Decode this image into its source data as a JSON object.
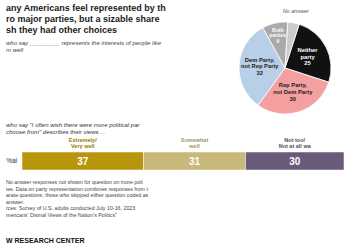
{
  "chart_data": [
    {
      "type": "pie",
      "title": "any Americans feel represented by th\nro major parties, but a sizable share\nsh they had other choices",
      "subtitle": "who say _________ represents the interests of people like\nm well",
      "categories": [
        "Neither\nparty",
        "Rep Party,\nnot Dem Party",
        "Dem Party,\nnot Rep Party",
        "Both\nparties",
        "No answer"
      ],
      "values": [
        25,
        30,
        32,
        9,
        4
      ],
      "value_labels": [
        "25",
        "30",
        "32",
        "9",
        null
      ],
      "colors": [
        "#111111",
        "#f4a0a0",
        "#b8cfe8",
        "#aaaaaa",
        "#cccccc"
      ],
      "data_labels": true
    },
    {
      "type": "bar",
      "orientation": "horizontal",
      "stacked": true,
      "subtitle": "who say \"I often wish there were more political par\nchoose from\" describes their views ...",
      "categories": [
        "%al"
      ],
      "series": [
        {
          "name": "Extremely/\nVery well",
          "color": "#b8960c",
          "values": [
            37
          ]
        },
        {
          "name": "Somewhat\nwell",
          "color": "#c8b87a",
          "values": [
            31
          ]
        },
        {
          "name": "Not too/\nNot at all wa",
          "color": "#6b5b7a",
          "values": [
            30
          ]
        }
      ],
      "xlim": [
        0,
        98
      ],
      "tick_labels": "y",
      "data_labels": true,
      "annotations": [
        "No answer responses not shown for question on more poli",
        "ies. Data on party representation combines responses from t",
        "arate questions; those who skipped either question coded as",
        "answer.",
        "rces: Survey of U.S. adults conducted July 10-16, 2023",
        "mericans' Dismal Views of the Nation's Politics\""
      ],
      "footer": "W RESEARCH CENTER"
    }
  ]
}
